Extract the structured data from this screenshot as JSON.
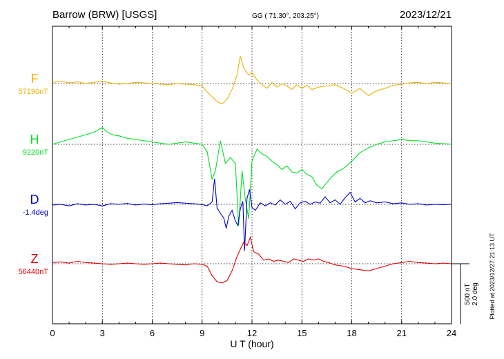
{
  "header": {
    "station": "Barrow (BRW)  [USGS]",
    "coords": "GG ( 71.30°, 203.25°)",
    "date": "2023/12/21"
  },
  "footer": {
    "plotted": "Plotted at 2023/12/27 21:13 UT"
  },
  "scale_bar": {
    "line1": "500 nT",
    "line2": "2.0 deg"
  },
  "chart_data": {
    "type": "line",
    "xlabel": "U T (hour)",
    "xlim": [
      0,
      24
    ],
    "xticks": [
      0,
      3,
      6,
      9,
      12,
      15,
      18,
      21,
      24
    ],
    "grid": true,
    "series": [
      {
        "name": "F",
        "baseline_label": "57190nT",
        "color": "#f0b000",
        "baseline_value": 57190,
        "points": [
          [
            0,
            57200
          ],
          [
            0.5,
            57210
          ],
          [
            1,
            57195
          ],
          [
            1.5,
            57205
          ],
          [
            2,
            57190
          ],
          [
            2.5,
            57200
          ],
          [
            3,
            57210
          ],
          [
            3.5,
            57195
          ],
          [
            4,
            57185
          ],
          [
            4.5,
            57190
          ],
          [
            5,
            57200
          ],
          [
            5.5,
            57195
          ],
          [
            6,
            57190
          ],
          [
            6.5,
            57185
          ],
          [
            7,
            57180
          ],
          [
            7.5,
            57190
          ],
          [
            8,
            57185
          ],
          [
            8.5,
            57180
          ],
          [
            9,
            57170
          ],
          [
            9.3,
            57120
          ],
          [
            9.6,
            57080
          ],
          [
            9.9,
            57040
          ],
          [
            10.2,
            57020
          ],
          [
            10.5,
            57060
          ],
          [
            10.8,
            57140
          ],
          [
            11.1,
            57260
          ],
          [
            11.3,
            57420
          ],
          [
            11.5,
            57320
          ],
          [
            11.8,
            57260
          ],
          [
            12,
            57280
          ],
          [
            12.3,
            57220
          ],
          [
            12.6,
            57180
          ],
          [
            12.9,
            57150
          ],
          [
            13.2,
            57200
          ],
          [
            13.5,
            57160
          ],
          [
            13.8,
            57190
          ],
          [
            14.1,
            57170
          ],
          [
            14.4,
            57140
          ],
          [
            14.7,
            57180
          ],
          [
            15,
            57150
          ],
          [
            15.3,
            57175
          ],
          [
            15.6,
            57140
          ],
          [
            16,
            57160
          ],
          [
            16.5,
            57170
          ],
          [
            17,
            57180
          ],
          [
            17.5,
            57150
          ],
          [
            18,
            57110
          ],
          [
            18.5,
            57150
          ],
          [
            19,
            57090
          ],
          [
            19.5,
            57130
          ],
          [
            20,
            57150
          ],
          [
            20.5,
            57175
          ],
          [
            21,
            57185
          ],
          [
            21.5,
            57195
          ],
          [
            22,
            57200
          ],
          [
            22.5,
            57190
          ],
          [
            23,
            57200
          ],
          [
            23.5,
            57195
          ],
          [
            24,
            57190
          ]
        ]
      },
      {
        "name": "H",
        "baseline_label": "9220nT",
        "color": "#00e020",
        "baseline_value": 9220,
        "points": [
          [
            0,
            9220
          ],
          [
            0.5,
            9240
          ],
          [
            1,
            9260
          ],
          [
            1.5,
            9280
          ],
          [
            2,
            9300
          ],
          [
            2.5,
            9320
          ],
          [
            3,
            9360
          ],
          [
            3.3,
            9320
          ],
          [
            3.6,
            9300
          ],
          [
            4,
            9290
          ],
          [
            4.5,
            9270
          ],
          [
            5,
            9260
          ],
          [
            5.5,
            9250
          ],
          [
            6,
            9240
          ],
          [
            6.5,
            9230
          ],
          [
            7,
            9220
          ],
          [
            7.5,
            9230
          ],
          [
            8,
            9240
          ],
          [
            8.5,
            9230
          ],
          [
            9,
            9220
          ],
          [
            9.3,
            9160
          ],
          [
            9.6,
            8930
          ],
          [
            9.8,
            9000
          ],
          [
            10.1,
            9250
          ],
          [
            10.4,
            9060
          ],
          [
            10.7,
            9110
          ],
          [
            11,
            9060
          ],
          [
            11.2,
            8540
          ],
          [
            11.4,
            9000
          ],
          [
            11.6,
            8760
          ],
          [
            11.8,
            8600
          ],
          [
            12,
            9080
          ],
          [
            12.3,
            9180
          ],
          [
            12.6,
            9140
          ],
          [
            12.9,
            9120
          ],
          [
            13.2,
            9080
          ],
          [
            13.5,
            9050
          ],
          [
            13.8,
            9010
          ],
          [
            14.1,
            9040
          ],
          [
            14.4,
            8990
          ],
          [
            14.7,
            8980
          ],
          [
            15,
            9010
          ],
          [
            15.3,
            8970
          ],
          [
            15.6,
            8950
          ],
          [
            15.9,
            8880
          ],
          [
            16.2,
            8850
          ],
          [
            16.5,
            8900
          ],
          [
            16.8,
            8950
          ],
          [
            17.1,
            8990
          ],
          [
            17.4,
            9010
          ],
          [
            17.7,
            9040
          ],
          [
            18,
            9080
          ],
          [
            18.5,
            9150
          ],
          [
            19,
            9190
          ],
          [
            19.5,
            9220
          ],
          [
            20,
            9240
          ],
          [
            20.5,
            9250
          ],
          [
            21,
            9260
          ],
          [
            21.5,
            9250
          ],
          [
            22,
            9250
          ],
          [
            22.5,
            9240
          ],
          [
            23,
            9230
          ],
          [
            23.5,
            9225
          ],
          [
            24,
            9220
          ]
        ]
      },
      {
        "name": "D",
        "baseline_label": "-1.4deg",
        "color": "#0000d0",
        "baseline_value": -1.4,
        "points": [
          [
            0,
            -1.42
          ],
          [
            0.5,
            -1.4
          ],
          [
            1,
            -1.45
          ],
          [
            1.5,
            -1.38
          ],
          [
            2,
            -1.42
          ],
          [
            2.5,
            -1.4
          ],
          [
            3,
            -1.45
          ],
          [
            3.5,
            -1.38
          ],
          [
            4,
            -1.4
          ],
          [
            4.5,
            -1.37
          ],
          [
            5,
            -1.42
          ],
          [
            5.5,
            -1.39
          ],
          [
            6,
            -1.41
          ],
          [
            6.5,
            -1.38
          ],
          [
            7,
            -1.36
          ],
          [
            7.5,
            -1.34
          ],
          [
            8,
            -1.36
          ],
          [
            8.5,
            -1.38
          ],
          [
            9,
            -1.41
          ],
          [
            9.3,
            -1.45
          ],
          [
            9.6,
            -1.32
          ],
          [
            9.75,
            -0.55
          ],
          [
            9.9,
            -1.52
          ],
          [
            10.1,
            -1.7
          ],
          [
            10.3,
            -1.85
          ],
          [
            10.45,
            -2.2
          ],
          [
            10.6,
            -1.8
          ],
          [
            10.8,
            -1.6
          ],
          [
            11,
            -1.95
          ],
          [
            11.15,
            -2.1
          ],
          [
            11.3,
            -1.55
          ],
          [
            11.45,
            -1.3
          ],
          [
            11.55,
            -2.95
          ],
          [
            11.7,
            -1.2
          ],
          [
            11.85,
            -0.9
          ],
          [
            12,
            -1.5
          ],
          [
            12.2,
            -1.6
          ],
          [
            12.5,
            -1.35
          ],
          [
            12.8,
            -1.45
          ],
          [
            13.1,
            -1.35
          ],
          [
            13.4,
            -1.42
          ],
          [
            13.7,
            -1.25
          ],
          [
            14,
            -1.4
          ],
          [
            14.3,
            -1.3
          ],
          [
            14.6,
            -1.55
          ],
          [
            14.9,
            -1.35
          ],
          [
            15.2,
            -1.3
          ],
          [
            15.5,
            -1.4
          ],
          [
            15.8,
            -1.32
          ],
          [
            16.1,
            -1.36
          ],
          [
            16.4,
            -1.15
          ],
          [
            16.7,
            -1.35
          ],
          [
            17,
            -1.25
          ],
          [
            17.3,
            -1.4
          ],
          [
            17.6,
            -1.18
          ],
          [
            17.9,
            -1.0
          ],
          [
            18.2,
            -1.32
          ],
          [
            18.5,
            -1.2
          ],
          [
            18.8,
            -1.35
          ],
          [
            19.1,
            -1.28
          ],
          [
            19.5,
            -1.35
          ],
          [
            20,
            -1.32
          ],
          [
            20.5,
            -1.38
          ],
          [
            21,
            -1.35
          ],
          [
            21.5,
            -1.4
          ],
          [
            22,
            -1.38
          ],
          [
            22.5,
            -1.42
          ],
          [
            23,
            -1.4
          ],
          [
            23.5,
            -1.41
          ],
          [
            24,
            -1.4
          ]
        ]
      },
      {
        "name": "Z",
        "baseline_label": "56440nT",
        "color": "#e00000",
        "baseline_value": 56440,
        "points": [
          [
            0,
            56450
          ],
          [
            0.5,
            56455
          ],
          [
            1,
            56445
          ],
          [
            1.5,
            56460
          ],
          [
            2,
            56450
          ],
          [
            2.5,
            56445
          ],
          [
            3,
            56440
          ],
          [
            3.5,
            56435
          ],
          [
            4,
            56440
          ],
          [
            4.5,
            56445
          ],
          [
            5,
            56440
          ],
          [
            5.5,
            56435
          ],
          [
            6,
            56440
          ],
          [
            6.5,
            56445
          ],
          [
            7,
            56440
          ],
          [
            7.5,
            56435
          ],
          [
            8,
            56430
          ],
          [
            8.5,
            56440
          ],
          [
            9,
            56435
          ],
          [
            9.3,
            56420
          ],
          [
            9.6,
            56340
          ],
          [
            9.9,
            56290
          ],
          [
            10.2,
            56280
          ],
          [
            10.5,
            56300
          ],
          [
            10.8,
            56380
          ],
          [
            11.1,
            56500
          ],
          [
            11.3,
            56560
          ],
          [
            11.5,
            56620
          ],
          [
            11.7,
            56590
          ],
          [
            11.9,
            56660
          ],
          [
            12.1,
            56540
          ],
          [
            12.4,
            56520
          ],
          [
            12.7,
            56470
          ],
          [
            13,
            56480
          ],
          [
            13.3,
            56460
          ],
          [
            13.6,
            56470
          ],
          [
            13.9,
            56460
          ],
          [
            14.2,
            56450
          ],
          [
            14.5,
            56480
          ],
          [
            14.8,
            56470
          ],
          [
            15.1,
            56460
          ],
          [
            15.4,
            56480
          ],
          [
            15.7,
            56470
          ],
          [
            16,
            56480
          ],
          [
            16.3,
            56460
          ],
          [
            16.6,
            56450
          ],
          [
            17,
            56430
          ],
          [
            17.5,
            56420
          ],
          [
            18,
            56400
          ],
          [
            18.5,
            56390
          ],
          [
            19,
            56380
          ],
          [
            19.5,
            56400
          ],
          [
            20,
            56420
          ],
          [
            20.5,
            56440
          ],
          [
            21,
            56450
          ],
          [
            21.5,
            56460
          ],
          [
            22,
            56450
          ],
          [
            22.5,
            56445
          ],
          [
            23,
            56440
          ],
          [
            23.5,
            56445
          ],
          [
            24,
            56440
          ]
        ]
      }
    ]
  }
}
